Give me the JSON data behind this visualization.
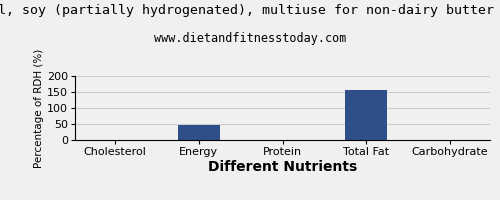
{
  "title": "trial, soy (partially hydrogenated), multiuse for non-dairy butter flav",
  "subtitle": "www.dietandfitnesstoday.com",
  "xlabel": "Different Nutrients",
  "ylabel": "Percentage of RDH (%)",
  "categories": [
    "Cholesterol",
    "Energy",
    "Protein",
    "Total Fat",
    "Carbohydrate"
  ],
  "values": [
    0,
    46,
    0,
    155,
    0
  ],
  "bar_color": "#2e4f8a",
  "ylim": [
    0,
    200
  ],
  "yticks": [
    0,
    50,
    100,
    150,
    200
  ],
  "background_color": "#f0f0f0",
  "title_fontsize": 9.5,
  "subtitle_fontsize": 8.5,
  "xlabel_fontsize": 10,
  "ylabel_fontsize": 7.5,
  "tick_fontsize": 8,
  "grid_color": "#cccccc"
}
